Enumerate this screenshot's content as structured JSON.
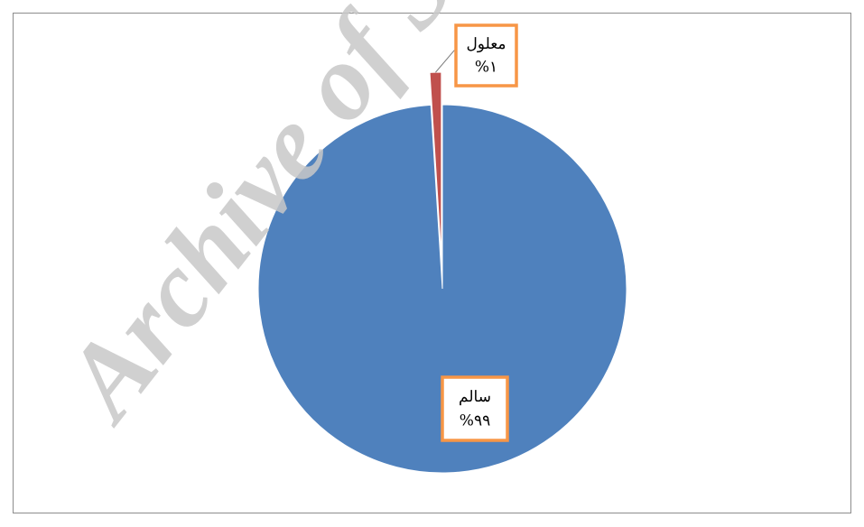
{
  "chart_data": {
    "type": "pie",
    "categories": [
      "سالم",
      "معلول"
    ],
    "values": [
      99,
      1
    ],
    "value_labels": [
      "%٩٩",
      "%١"
    ],
    "colors": [
      "#4f81bd",
      "#c0504d"
    ],
    "watermark": "Archive of SID"
  }
}
